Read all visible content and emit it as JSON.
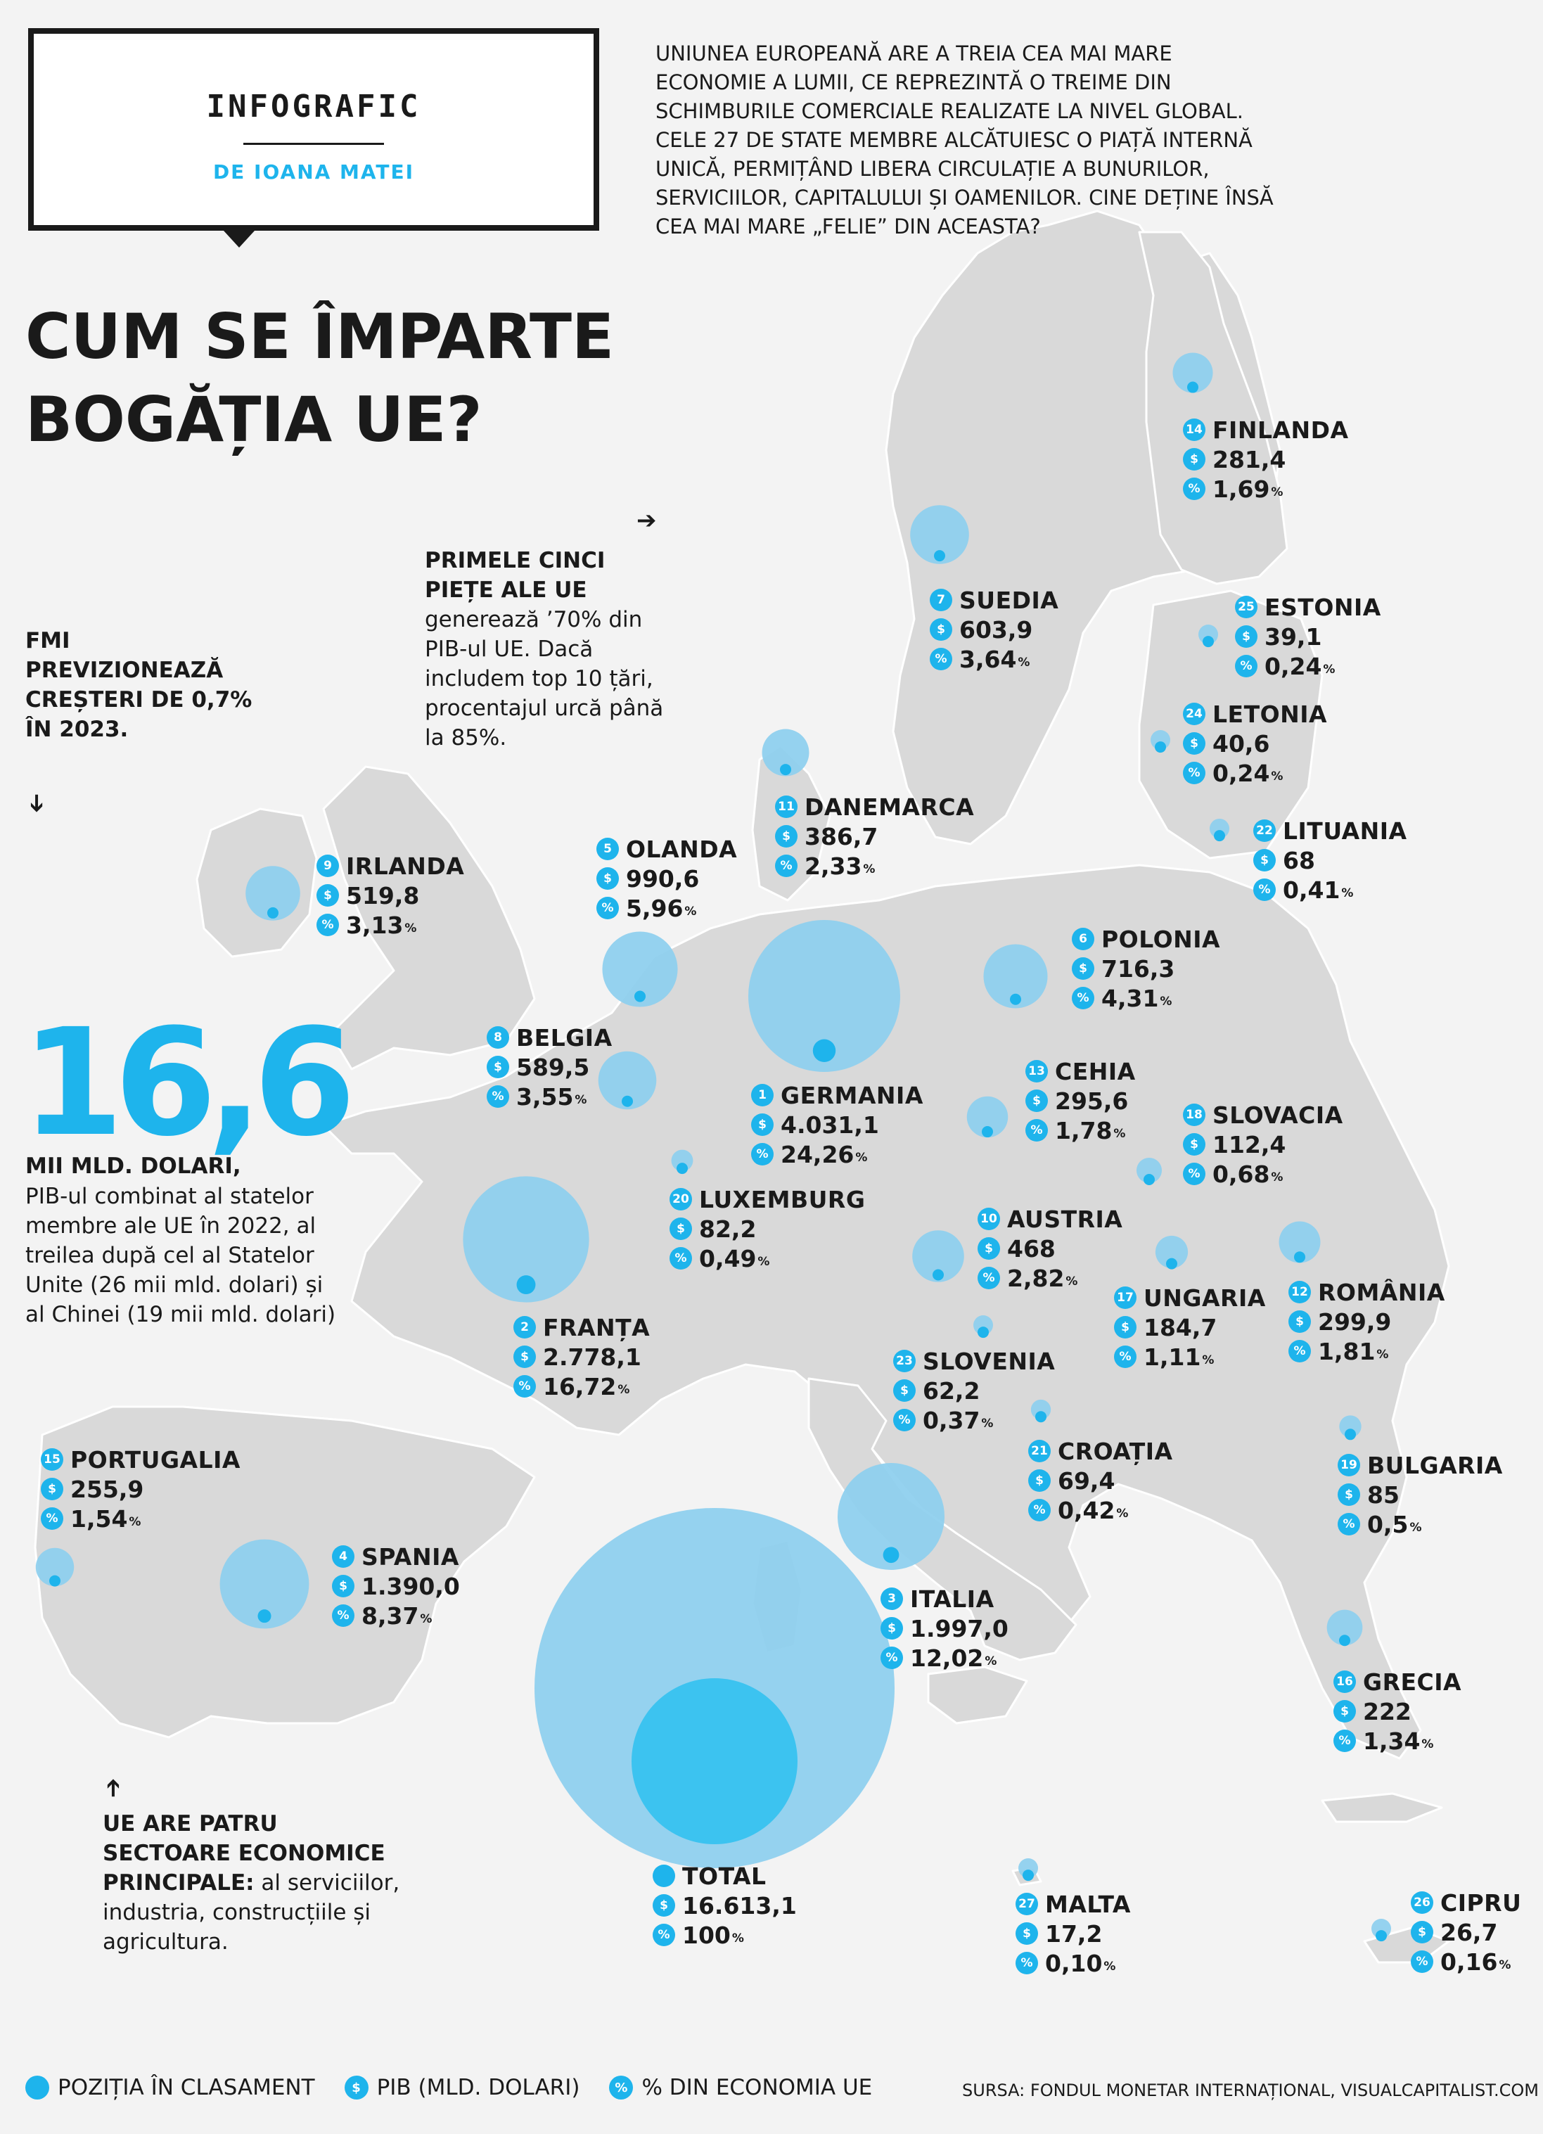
{
  "header": {
    "title": "INFOGRAFIC",
    "author": "DE IOANA MATEI"
  },
  "intro": "UNIUNEA EUROPEANĂ ARE A TREIA CEA MAI MARE ECONOMIE A LUMII, CE REPREZINTĂ O TREIME DIN SCHIMBURILE COMERCIALE REALIZATE LA NIVEL GLOBAL. CELE 27 DE STATE MEMBRE ALCĂTUIESC O PIAȚĂ INTERNĂ UNICĂ, PERMIȚÂND LIBERA CIRCULAȚIE A BUNURILOR, SERVICIILOR, CAPITALULUI ȘI OAMENILOR. CINE DEȚINE ÎNSĂ CEA MAI MARE „FELIE” DIN ACEASTA?",
  "headline": {
    "line1": "CUM SE ÎMPARTE",
    "line2": "BOGĂȚIA UE?"
  },
  "notes": {
    "top5_bold": "PRIMELE CINCI PIEȚE ALE UE",
    "top5_text": "generează ’70% din PIB-ul UE. Dacă includem top 10 țări, procentajul urcă până la 85%.",
    "imf": "FMI PREVIZIONEAZĂ CREȘTERI DE 0,7% ÎN 2023.",
    "sectors_bold": "UE ARE PATRU SECTOARE ECONOMICE PRINCIPALE:",
    "sectors_text": " al serviciilor, industria, construcțiile și agricultura."
  },
  "arrows": {
    "right": "➔",
    "down": "➔",
    "up": "➔"
  },
  "big_stat": {
    "number": "16,6",
    "unit": "MII MLD. DOLARI,",
    "description": "PIB-ul combinat al statelor membre ale UE în 2022, al treilea după cel al Statelor Unite (26 mii mld. dolari) și al Chinei (19 mii mld. dolari)"
  },
  "legend": {
    "rank": "POZIȚIA ÎN CLASAMENT",
    "gdp": "PIB (MLD. DOLARI)",
    "share": "% DIN ECONOMIA UE",
    "gdp_icon": "$",
    "share_icon": "%"
  },
  "source": "SURSA: FONDUL MONETAR INTERNAȚIONAL, VISUALCAPITALIST.COM",
  "colors": {
    "accent": "#1eb4ec",
    "bubble": "#8fd0ee",
    "total_inner": "#3cc3f0",
    "land": "#d9d9d9",
    "background": "#f3f3f3",
    "text": "#1a1a1a"
  },
  "chart_data": {
    "type": "bubble-map",
    "value_label": "PIB (MLD. DOLARI)",
    "series": [
      {
        "rank": "1",
        "name": "GERMANIA",
        "gdp": 4031.1,
        "gdp_label": "4.031,1",
        "share": 24.26,
        "share_label": "24,26"
      },
      {
        "rank": "2",
        "name": "FRANȚA",
        "gdp": 2778.1,
        "gdp_label": "2.778,1",
        "share": 16.72,
        "share_label": "16,72"
      },
      {
        "rank": "3",
        "name": "ITALIA",
        "gdp": 1997.0,
        "gdp_label": "1.997,0",
        "share": 12.02,
        "share_label": "12,02"
      },
      {
        "rank": "4",
        "name": "SPANIA",
        "gdp": 1390.0,
        "gdp_label": "1.390,0",
        "share": 8.37,
        "share_label": "8,37"
      },
      {
        "rank": "5",
        "name": "OLANDA",
        "gdp": 990.6,
        "gdp_label": "990,6",
        "share": 5.96,
        "share_label": "5,96"
      },
      {
        "rank": "6",
        "name": "POLONIA",
        "gdp": 716.3,
        "gdp_label": "716,3",
        "share": 4.31,
        "share_label": "4,31"
      },
      {
        "rank": "7",
        "name": "SUEDIA",
        "gdp": 603.9,
        "gdp_label": "603,9",
        "share": 3.64,
        "share_label": "3,64"
      },
      {
        "rank": "8",
        "name": "BELGIA",
        "gdp": 589.5,
        "gdp_label": "589,5",
        "share": 3.55,
        "share_label": "3,55"
      },
      {
        "rank": "9",
        "name": "IRLANDA",
        "gdp": 519.8,
        "gdp_label": "519,8",
        "share": 3.13,
        "share_label": "3,13"
      },
      {
        "rank": "10",
        "name": "AUSTRIA",
        "gdp": 468,
        "gdp_label": "468",
        "share": 2.82,
        "share_label": "2,82"
      },
      {
        "rank": "11",
        "name": "DANEMARCA",
        "gdp": 386.7,
        "gdp_label": "386,7",
        "share": 2.33,
        "share_label": "2,33"
      },
      {
        "rank": "12",
        "name": "ROMÂNIA",
        "gdp": 299.9,
        "gdp_label": "299,9",
        "share": 1.81,
        "share_label": "1,81"
      },
      {
        "rank": "13",
        "name": "CEHIA",
        "gdp": 295.6,
        "gdp_label": "295,6",
        "share": 1.78,
        "share_label": "1,78"
      },
      {
        "rank": "14",
        "name": "FINLANDA",
        "gdp": 281.4,
        "gdp_label": "281,4",
        "share": 1.69,
        "share_label": "1,69"
      },
      {
        "rank": "15",
        "name": "PORTUGALIA",
        "gdp": 255.9,
        "gdp_label": "255,9",
        "share": 1.54,
        "share_label": "1,54"
      },
      {
        "rank": "16",
        "name": "GRECIA",
        "gdp": 222,
        "gdp_label": "222",
        "share": 1.34,
        "share_label": "1,34"
      },
      {
        "rank": "17",
        "name": "UNGARIA",
        "gdp": 184.7,
        "gdp_label": "184,7",
        "share": 1.11,
        "share_label": "1,11"
      },
      {
        "rank": "18",
        "name": "SLOVACIA",
        "gdp": 112.4,
        "gdp_label": "112,4",
        "share": 0.68,
        "share_label": "0,68"
      },
      {
        "rank": "19",
        "name": "BULGARIA",
        "gdp": 85,
        "gdp_label": "85",
        "share": 0.5,
        "share_label": "0,5"
      },
      {
        "rank": "20",
        "name": "LUXEMBURG",
        "gdp": 82.2,
        "gdp_label": "82,2",
        "share": 0.49,
        "share_label": "0,49"
      },
      {
        "rank": "21",
        "name": "CROAȚIA",
        "gdp": 69.4,
        "gdp_label": "69,4",
        "share": 0.42,
        "share_label": "0,42"
      },
      {
        "rank": "22",
        "name": "LITUANIA",
        "gdp": 68,
        "gdp_label": "68",
        "share": 0.41,
        "share_label": "0,41"
      },
      {
        "rank": "23",
        "name": "SLOVENIA",
        "gdp": 62.2,
        "gdp_label": "62,2",
        "share": 0.37,
        "share_label": "0,37"
      },
      {
        "rank": "24",
        "name": "LETONIA",
        "gdp": 40.6,
        "gdp_label": "40,6",
        "share": 0.24,
        "share_label": "0,24"
      },
      {
        "rank": "25",
        "name": "ESTONIA",
        "gdp": 39.1,
        "gdp_label": "39,1",
        "share": 0.24,
        "share_label": "0,24"
      },
      {
        "rank": "26",
        "name": "CIPRU",
        "gdp": 26.7,
        "gdp_label": "26,7",
        "share": 0.16,
        "share_label": "0,16"
      },
      {
        "rank": "27",
        "name": "MALTA",
        "gdp": 17.2,
        "gdp_label": "17,2",
        "share": 0.1,
        "share_label": "0,10"
      }
    ],
    "total": {
      "name": "TOTAL",
      "gdp": 16613.1,
      "gdp_label": "16.613,1",
      "share": 100,
      "share_label": "100"
    }
  }
}
